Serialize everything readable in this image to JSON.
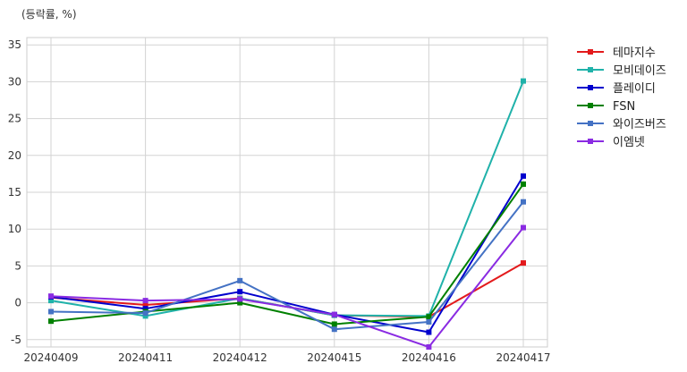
{
  "chart_data": {
    "type": "line",
    "unit_label": "(등락률, %)",
    "x": [
      "20240409",
      "20240411",
      "20240412",
      "20240415",
      "20240416",
      "20240417"
    ],
    "ylim": [
      -6,
      36
    ],
    "yticks": [
      -5,
      0,
      5,
      10,
      15,
      20,
      25,
      30,
      35
    ],
    "grid": true,
    "legend_position": "outside-top-right",
    "series": [
      {
        "name": "테마지수",
        "color": "#e31a1c",
        "values": [
          0.7,
          -0.3,
          0.6,
          -1.7,
          -1.9,
          5.4
        ]
      },
      {
        "name": "모비데이즈",
        "color": "#20b2aa",
        "values": [
          0.3,
          -1.8,
          0.6,
          -1.7,
          -1.8,
          30.1
        ]
      },
      {
        "name": "플레이디",
        "color": "#0000cd",
        "values": [
          0.8,
          -0.8,
          1.5,
          -1.6,
          -4.0,
          17.2
        ]
      },
      {
        "name": "FSN",
        "color": "#008000",
        "values": [
          -2.5,
          -1.2,
          0.0,
          -2.9,
          -1.9,
          16.1
        ]
      },
      {
        "name": "와이즈버즈",
        "color": "#4472c4",
        "values": [
          -1.2,
          -1.4,
          3.0,
          -3.6,
          -2.6,
          13.7
        ]
      },
      {
        "name": "이엠넷",
        "color": "#8a2be2",
        "values": [
          0.9,
          0.3,
          0.5,
          -1.6,
          -6.0,
          10.2
        ]
      }
    ]
  }
}
